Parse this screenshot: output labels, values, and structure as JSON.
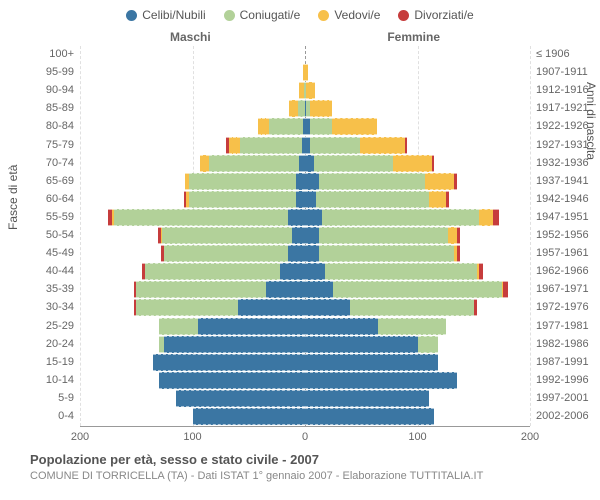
{
  "legend": [
    {
      "label": "Celibi/Nubili",
      "color": "#3b76a3"
    },
    {
      "label": "Coniugati/e",
      "color": "#b2d199"
    },
    {
      "label": "Vedovi/e",
      "color": "#f7c04a"
    },
    {
      "label": "Divorziati/e",
      "color": "#c63c3c"
    }
  ],
  "header": {
    "male": "Maschi",
    "female": "Femmine"
  },
  "axis": {
    "left_title": "Fasce di età",
    "right_title": "Anni di nascita",
    "x_max": 200,
    "x_ticks": [
      200,
      100,
      0,
      100,
      200
    ],
    "grid_color": "#e0e0e0",
    "center_color": "#999"
  },
  "colors": {
    "celibi": "#3b76a3",
    "coniugati": "#b2d199",
    "vedovi": "#f7c04a",
    "divorziati": "#c63c3c",
    "background": "#ffffff"
  },
  "row_height": 18.1,
  "rows": [
    {
      "age": "100+",
      "years": "≤ 1906",
      "m": [
        0,
        0,
        0,
        0
      ],
      "f": [
        0,
        0,
        0,
        0
      ]
    },
    {
      "age": "95-99",
      "years": "1907-1911",
      "m": [
        0,
        0,
        2,
        0
      ],
      "f": [
        0,
        0,
        3,
        0
      ]
    },
    {
      "age": "90-94",
      "years": "1912-1916",
      "m": [
        0,
        1,
        4,
        0
      ],
      "f": [
        0,
        1,
        8,
        0
      ]
    },
    {
      "age": "85-89",
      "years": "1917-1921",
      "m": [
        0,
        6,
        8,
        0
      ],
      "f": [
        1,
        3,
        20,
        0
      ]
    },
    {
      "age": "80-84",
      "years": "1922-1926",
      "m": [
        2,
        30,
        10,
        0
      ],
      "f": [
        4,
        20,
        40,
        0
      ]
    },
    {
      "age": "75-79",
      "years": "1927-1931",
      "m": [
        3,
        55,
        10,
        2
      ],
      "f": [
        4,
        45,
        40,
        2
      ]
    },
    {
      "age": "70-74",
      "years": "1932-1936",
      "m": [
        5,
        80,
        8,
        0
      ],
      "f": [
        8,
        70,
        35,
        2
      ]
    },
    {
      "age": "65-69",
      "years": "1937-1941",
      "m": [
        8,
        95,
        4,
        0
      ],
      "f": [
        12,
        95,
        25,
        3
      ]
    },
    {
      "age": "60-64",
      "years": "1942-1946",
      "m": [
        8,
        95,
        3,
        2
      ],
      "f": [
        10,
        100,
        15,
        3
      ]
    },
    {
      "age": "55-59",
      "years": "1947-1951",
      "m": [
        15,
        155,
        2,
        3
      ],
      "f": [
        15,
        140,
        12,
        5
      ]
    },
    {
      "age": "50-54",
      "years": "1952-1956",
      "m": [
        12,
        115,
        1,
        3
      ],
      "f": [
        12,
        115,
        8,
        3
      ]
    },
    {
      "age": "45-49",
      "years": "1957-1961",
      "m": [
        15,
        110,
        0,
        3
      ],
      "f": [
        12,
        120,
        3,
        3
      ]
    },
    {
      "age": "40-44",
      "years": "1962-1966",
      "m": [
        22,
        120,
        0,
        3
      ],
      "f": [
        18,
        135,
        2,
        3
      ]
    },
    {
      "age": "35-39",
      "years": "1967-1971",
      "m": [
        35,
        115,
        0,
        2
      ],
      "f": [
        25,
        150,
        1,
        4
      ]
    },
    {
      "age": "30-34",
      "years": "1972-1976",
      "m": [
        60,
        90,
        0,
        2
      ],
      "f": [
        40,
        110,
        0,
        3
      ]
    },
    {
      "age": "25-29",
      "years": "1977-1981",
      "m": [
        95,
        35,
        0,
        0
      ],
      "f": [
        65,
        60,
        0,
        0
      ]
    },
    {
      "age": "20-24",
      "years": "1982-1986",
      "m": [
        125,
        5,
        0,
        0
      ],
      "f": [
        100,
        18,
        0,
        0
      ]
    },
    {
      "age": "15-19",
      "years": "1987-1991",
      "m": [
        135,
        0,
        0,
        0
      ],
      "f": [
        118,
        0,
        0,
        0
      ]
    },
    {
      "age": "10-14",
      "years": "1992-1996",
      "m": [
        130,
        0,
        0,
        0
      ],
      "f": [
        135,
        0,
        0,
        0
      ]
    },
    {
      "age": "5-9",
      "years": "1997-2001",
      "m": [
        115,
        0,
        0,
        0
      ],
      "f": [
        110,
        0,
        0,
        0
      ]
    },
    {
      "age": "0-4",
      "years": "2002-2006",
      "m": [
        100,
        0,
        0,
        0
      ],
      "f": [
        115,
        0,
        0,
        0
      ]
    }
  ],
  "footer": {
    "title": "Popolazione per età, sesso e stato civile - 2007",
    "sub": "COMUNE DI TORRICELLA (TA) - Dati ISTAT 1° gennaio 2007 - Elaborazione TUTTITALIA.IT"
  }
}
